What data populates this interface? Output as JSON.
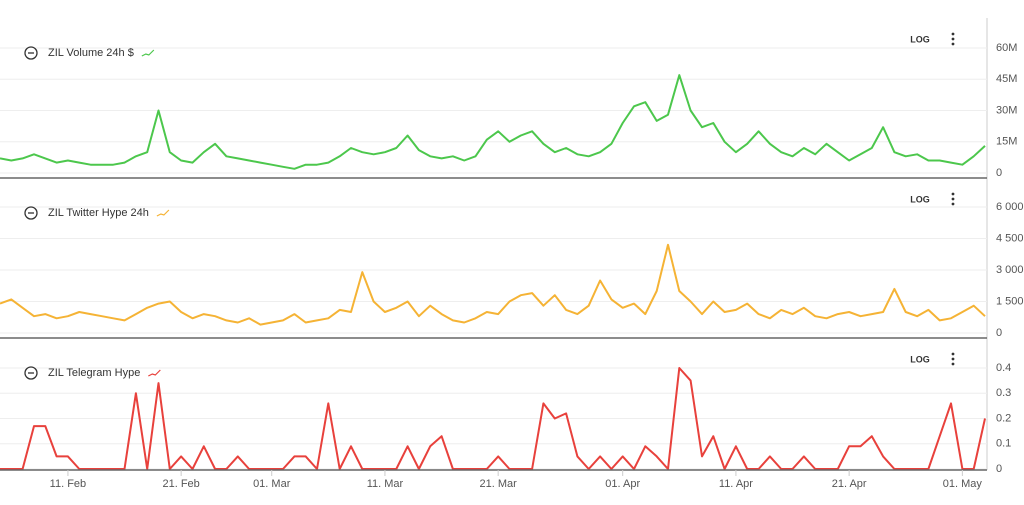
{
  "chart_data": [
    {
      "type": "line",
      "log_button": "LOG",
      "series": [
        {
          "name": "ZIL Volume 24h $",
          "color": "#4cc74c",
          "values": [
            7000000,
            6000000,
            7000000,
            9000000,
            7000000,
            5000000,
            6000000,
            5000000,
            4000000,
            4000000,
            4000000,
            5000000,
            8000000,
            10000000,
            30000000,
            10000000,
            6000000,
            5000000,
            10000000,
            14000000,
            8000000,
            7000000,
            6000000,
            5000000,
            4000000,
            3000000,
            2000000,
            4000000,
            4000000,
            5000000,
            8000000,
            12000000,
            10000000,
            9000000,
            10000000,
            12000000,
            18000000,
            11000000,
            8000000,
            7000000,
            8000000,
            6000000,
            8000000,
            16000000,
            20000000,
            15000000,
            18000000,
            20000000,
            14000000,
            10000000,
            12000000,
            9000000,
            8000000,
            10000000,
            14000000,
            24000000,
            32000000,
            34000000,
            25000000,
            28000000,
            47000000,
            30000000,
            22000000,
            24000000,
            15000000,
            10000000,
            14000000,
            20000000,
            14000000,
            10000000,
            8000000,
            12000000,
            9000000,
            14000000,
            10000000,
            6000000,
            9000000,
            12000000,
            22000000,
            10000000,
            8000000,
            9000000,
            6000000,
            6000000,
            5000000,
            4000000,
            8000000,
            13000000
          ]
        }
      ],
      "ylim": [
        0,
        60000000
      ],
      "yticks": [
        0,
        {
          "value": 15000000,
          "label": "15M"
        },
        {
          "value": 30000000,
          "label": "30M"
        },
        {
          "value": 45000000,
          "label": "45M"
        },
        {
          "value": 60000000,
          "label": "60M"
        }
      ],
      "grid": true
    },
    {
      "type": "line",
      "log_button": "LOG",
      "series": [
        {
          "name": "ZIL Twitter Hype 24h",
          "color": "#f5b335",
          "values": [
            1400,
            1600,
            1200,
            800,
            900,
            700,
            800,
            1000,
            900,
            800,
            700,
            600,
            900,
            1200,
            1400,
            1500,
            1000,
            700,
            900,
            800,
            600,
            500,
            700,
            400,
            500,
            600,
            900,
            500,
            600,
            700,
            1100,
            1000,
            2900,
            1500,
            1000,
            1200,
            1500,
            800,
            1300,
            900,
            600,
            500,
            700,
            1000,
            900,
            1500,
            1800,
            1900,
            1300,
            1800,
            1100,
            900,
            1300,
            2500,
            1600,
            1200,
            1400,
            900,
            2000,
            4200,
            2000,
            1500,
            900,
            1500,
            1000,
            1100,
            1400,
            900,
            700,
            1100,
            900,
            1200,
            800,
            700,
            900,
            1000,
            800,
            900,
            1000,
            2100,
            1000,
            800,
            1100,
            600,
            700,
            1000,
            1300,
            800
          ]
        }
      ],
      "ylim": [
        0,
        6000
      ],
      "yticks": [
        0,
        {
          "value": 1500,
          "label": "1 500"
        },
        {
          "value": 3000,
          "label": "3 000"
        },
        {
          "value": 4500,
          "label": "4 500"
        },
        {
          "value": 6000,
          "label": "6 000"
        }
      ],
      "grid": true
    },
    {
      "type": "line",
      "log_button": "LOG",
      "categories": [
        null,
        null,
        null,
        null,
        null,
        null,
        "11. Feb",
        null,
        null,
        null,
        null,
        null,
        null,
        null,
        null,
        null,
        "21. Feb",
        null,
        null,
        null,
        null,
        null,
        null,
        null,
        "01. Mar",
        null,
        null,
        null,
        null,
        null,
        null,
        null,
        null,
        null,
        "11. Mar",
        null,
        null,
        null,
        null,
        null,
        null,
        null,
        null,
        null,
        "21. Mar",
        null,
        null,
        null,
        null,
        null,
        null,
        null,
        null,
        null,
        null,
        "01. Apr",
        null,
        null,
        null,
        null,
        null,
        null,
        null,
        null,
        null,
        "11. Apr",
        null,
        null,
        null,
        null,
        null,
        null,
        null,
        null,
        null,
        "21. Apr",
        null,
        null,
        null,
        null,
        null,
        null,
        null,
        null,
        null,
        "01. May",
        null,
        null
      ],
      "series": [
        {
          "name": "ZIL Telegram Hype",
          "color": "#e8413c",
          "values": [
            0,
            0,
            0,
            0.17,
            0.17,
            0.05,
            0.05,
            0,
            0,
            0,
            0,
            0,
            0.3,
            0,
            0.34,
            0,
            0.05,
            0,
            0.09,
            0,
            0,
            0.05,
            0,
            0,
            0,
            0,
            0.05,
            0.05,
            0,
            0.26,
            0,
            0.09,
            0,
            0,
            0,
            0,
            0.09,
            0,
            0.09,
            0.13,
            0,
            0,
            0,
            0,
            0.05,
            0,
            0,
            0,
            0.26,
            0.2,
            0.22,
            0.05,
            0,
            0.05,
            0,
            0.05,
            0,
            0.09,
            0.05,
            0,
            0.4,
            0.35,
            0.05,
            0.13,
            0,
            0.09,
            0,
            0,
            0.05,
            0,
            0,
            0.05,
            0,
            0,
            0,
            0.09,
            0.09,
            0.13,
            0.05,
            0,
            0,
            0,
            0,
            0.13,
            0.26,
            0,
            0,
            0.2
          ]
        }
      ],
      "ylim": [
        0,
        0.4
      ],
      "yticks": [
        0,
        0.1,
        0.2,
        0.3,
        0.4
      ],
      "grid": true
    }
  ]
}
